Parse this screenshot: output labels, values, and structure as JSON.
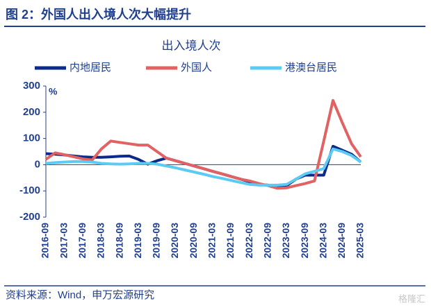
{
  "figure_title": "图 2：外国人出入境人次大幅提升",
  "source": "资料来源：Wind，申万宏源研究",
  "watermark": "格隆汇",
  "chart_data": {
    "type": "line",
    "title": "出入境人次",
    "y_unit": "%",
    "categories": [
      "2016-09",
      null,
      "2017-03",
      null,
      "2017-09",
      null,
      "2018-03",
      null,
      "2018-09",
      null,
      "2019-03",
      null,
      "2019-09",
      null,
      "2020-03",
      null,
      "2020-09",
      null,
      "2021-03",
      null,
      "2021-09",
      null,
      "2022-03",
      null,
      "2022-09",
      null,
      "2023-03",
      null,
      "2023-09",
      null,
      "2024-03",
      null,
      "2024-09",
      null,
      "2025-03"
    ],
    "series": [
      {
        "name": "内地居民",
        "color": "#0b2a8a",
        "values": [
          42,
          40,
          37,
          33,
          30,
          28,
          28,
          30,
          32,
          33,
          20,
          2,
          15,
          25,
          15,
          5,
          -5,
          -15,
          -25,
          -35,
          -45,
          -55,
          -65,
          -75,
          -78,
          -80,
          -80,
          -55,
          -40,
          -40,
          -40,
          70,
          55,
          40,
          10
        ]
      },
      {
        "name": "外国人",
        "color": "#e06262",
        "values": [
          20,
          45,
          38,
          30,
          22,
          18,
          60,
          90,
          85,
          80,
          75,
          75,
          50,
          25,
          15,
          5,
          -5,
          -15,
          -25,
          -35,
          -45,
          -55,
          -62,
          -72,
          -80,
          -90,
          -88,
          -80,
          -72,
          -62,
          90,
          245,
          160,
          80,
          30
        ]
      },
      {
        "name": "港澳台居民",
        "color": "#5ccbf4",
        "values": [
          5,
          8,
          10,
          12,
          12,
          10,
          5,
          3,
          2,
          3,
          5,
          5,
          2,
          -5,
          -12,
          -20,
          -28,
          -36,
          -45,
          -52,
          -60,
          -68,
          -75,
          -78,
          -78,
          -78,
          -75,
          -55,
          -35,
          -25,
          -15,
          60,
          50,
          35,
          10
        ]
      }
    ],
    "ylim": [
      -200,
      300
    ],
    "yticks": [
      300,
      200,
      100,
      0,
      -100,
      -200
    ],
    "grid": false
  }
}
